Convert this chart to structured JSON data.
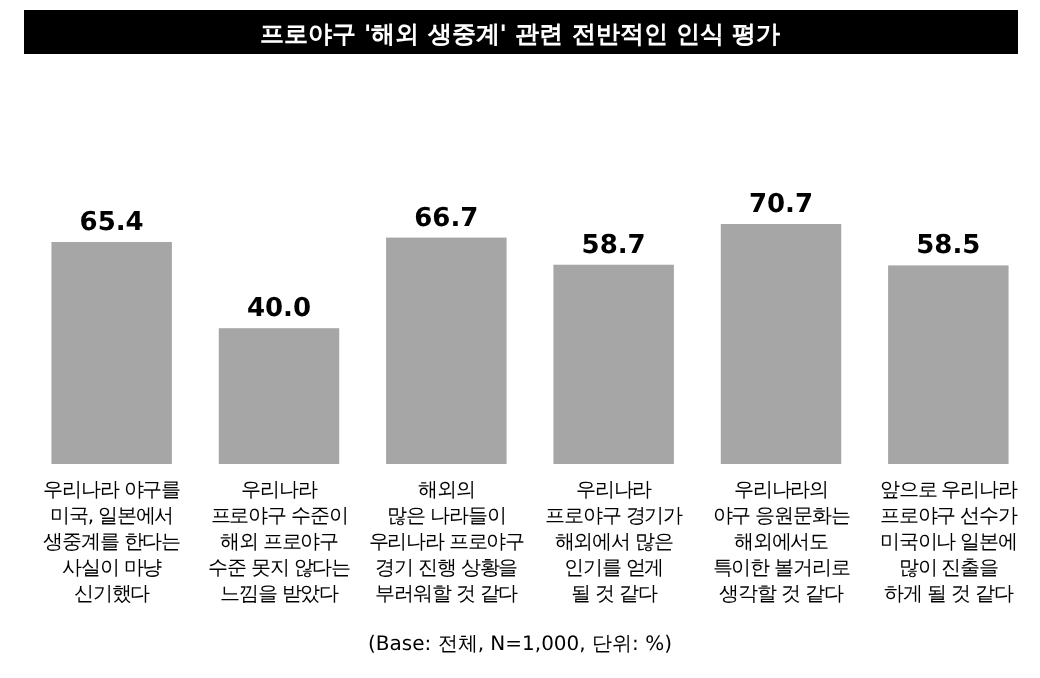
{
  "chart_data": {
    "type": "bar",
    "title": "프로야구 '해외 생중계' 관련 전반적인 인식 평가",
    "categories": [
      "우리나라 야구를\n미국, 일본에서\n생중계를 한다는\n사실이 마냥\n신기했다",
      "우리나라\n프로야구 수준이\n해외 프로야구\n수준 못지 않다는\n느낌을 받았다",
      "해외의\n많은 나라들이\n우리나라 프로야구\n경기 진행 상황을\n부러워할 것 같다",
      "우리나라\n프로야구 경기가\n해외에서 많은\n인기를 얻게\n될 것 같다",
      "우리나라의\n야구 응원문화는\n해외에서도\n특이한 볼거리로\n생각할 것 같다",
      "앞으로 우리나라\n프로야구 선수가\n미국이나 일본에\n많이 진출을\n하게 될 것 같다"
    ],
    "values": [
      65.4,
      40.0,
      66.7,
      58.7,
      70.7,
      58.5
    ],
    "value_labels": [
      "65.4",
      "40.0",
      "66.7",
      "58.7",
      "70.7",
      "58.5"
    ],
    "color": "#a6a6a6",
    "annotations": [
      "(Base: 전체, N=1,000, 단위: %)"
    ]
  }
}
